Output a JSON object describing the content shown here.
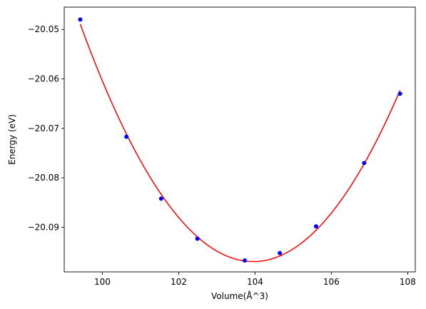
{
  "chart_data": {
    "type": "scatter",
    "xlabel": "Volume(Å^3)",
    "ylabel": "Energy (eV)",
    "xlim": [
      99.0,
      108.2
    ],
    "ylim": [
      -20.099,
      -20.0455
    ],
    "xticks": [
      100,
      102,
      104,
      106,
      108
    ],
    "yticks": [
      -20.09,
      -20.08,
      -20.07,
      -20.06,
      -20.05
    ],
    "xtick_labels": [
      "100",
      "102",
      "104",
      "106",
      "108"
    ],
    "ytick_labels": [
      "−20.09",
      "−20.08",
      "−20.07",
      "−20.06",
      "−20.05"
    ],
    "grid": false,
    "series": [
      {
        "kind": "points",
        "color": "#0000ff",
        "x": [
          99.42,
          100.63,
          101.54,
          102.49,
          103.73,
          104.65,
          105.6,
          106.86,
          107.8
        ],
        "y": [
          -20.048,
          -20.0717,
          -20.0842,
          -20.0923,
          -20.0967,
          -20.0952,
          -20.0898,
          -20.077,
          -20.063
        ]
      },
      {
        "kind": "fit-curve",
        "color": "#ff0000"
      }
    ]
  }
}
